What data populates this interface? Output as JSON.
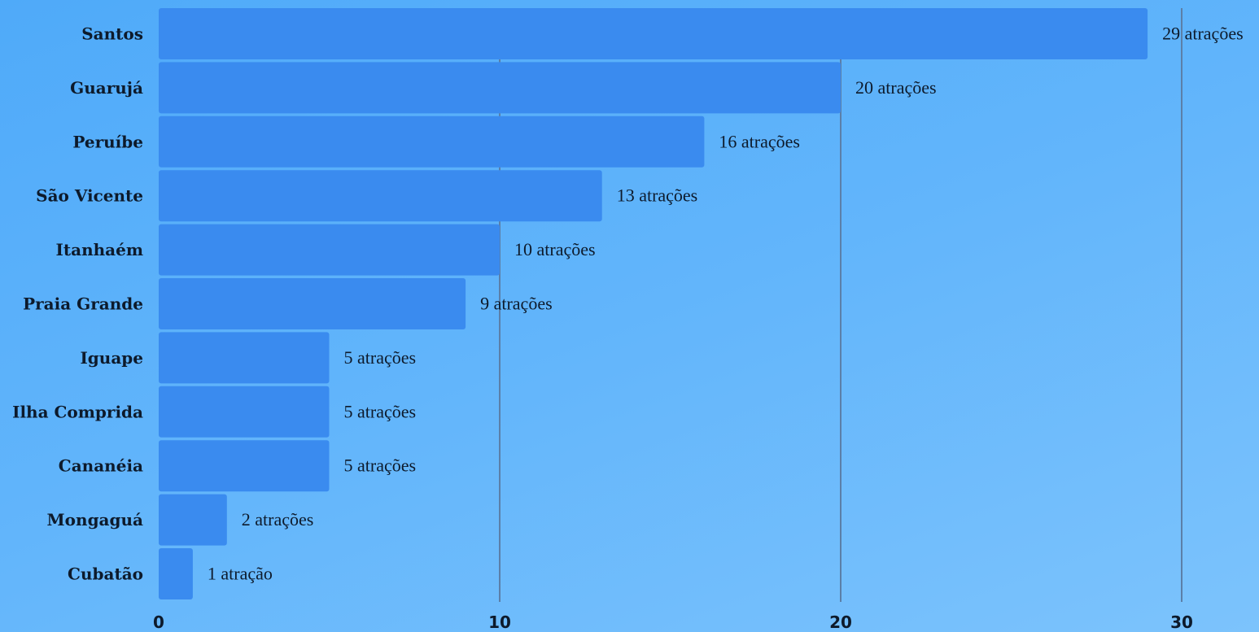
{
  "chart_data": {
    "type": "bar",
    "orientation": "horizontal",
    "categories": [
      "Santos",
      "Guarujá",
      "Peruíbe",
      "São Vicente",
      "Itanhaém",
      "Praia Grande",
      "Iguape",
      "Ilha Comprida",
      "Cananéia",
      "Mongaguá",
      "Cubatão"
    ],
    "values": [
      29,
      20,
      16,
      13,
      10,
      9,
      5,
      5,
      5,
      2,
      1
    ],
    "data_labels": [
      "29 atrações",
      "20 atrações",
      "16 atrações",
      "13 atrações",
      "10 atrações",
      "9 atrações",
      "5 atrações",
      "5 atrações",
      "5 atrações",
      "2 atrações",
      "1 atração"
    ],
    "x_ticks": [
      "0",
      "10",
      "20",
      "30"
    ],
    "xlim": [
      0,
      30
    ],
    "grid": "vertical",
    "colors": {
      "bar": "#3a8bef",
      "grid": "#5b7fa8",
      "text": "#0d1a2b"
    }
  }
}
